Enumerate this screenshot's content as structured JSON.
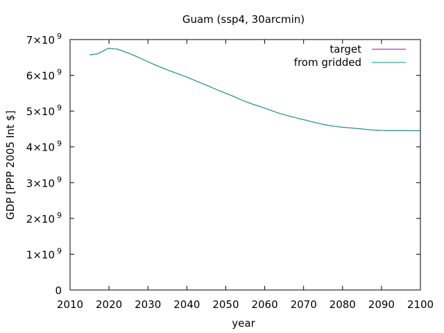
{
  "chart_data": {
    "type": "line",
    "title": "Guam (ssp4, 30arcmin)",
    "xlabel": "year",
    "ylabel": "GDP [PPP 2005 Int $]",
    "xlim": [
      2010,
      2100
    ],
    "ylim": [
      0,
      7000000000
    ],
    "xticks": [
      2010,
      2020,
      2030,
      2040,
      2050,
      2060,
      2070,
      2080,
      2090,
      2100
    ],
    "yticks": [
      {
        "value": 0,
        "mantissa": "0",
        "times": "",
        "base": "",
        "exp": ""
      },
      {
        "value": 1000000000,
        "mantissa": "1",
        "times": "×",
        "base": "10",
        "exp": "9"
      },
      {
        "value": 2000000000,
        "mantissa": "2",
        "times": "×",
        "base": "10",
        "exp": "9"
      },
      {
        "value": 3000000000,
        "mantissa": "3",
        "times": "×",
        "base": "10",
        "exp": "9"
      },
      {
        "value": 4000000000,
        "mantissa": "4",
        "times": "×",
        "base": "10",
        "exp": "9"
      },
      {
        "value": 5000000000,
        "mantissa": "5",
        "times": "×",
        "base": "10",
        "exp": "9"
      },
      {
        "value": 6000000000,
        "mantissa": "6",
        "times": "×",
        "base": "10",
        "exp": "9"
      },
      {
        "value": 7000000000,
        "mantissa": "7",
        "times": "×",
        "base": "10",
        "exp": "9"
      }
    ],
    "grid": false,
    "legend_position": "top-right",
    "x": [
      2015,
      2016,
      2017,
      2018,
      2019,
      2020,
      2021,
      2022,
      2023,
      2024,
      2025,
      2026,
      2027,
      2028,
      2029,
      2030,
      2031,
      2032,
      2033,
      2034,
      2035,
      2036,
      2037,
      2038,
      2039,
      2040,
      2041,
      2042,
      2043,
      2044,
      2045,
      2046,
      2047,
      2048,
      2049,
      2050,
      2051,
      2052,
      2053,
      2054,
      2055,
      2056,
      2057,
      2058,
      2059,
      2060,
      2061,
      2062,
      2063,
      2064,
      2065,
      2066,
      2067,
      2068,
      2069,
      2070,
      2071,
      2072,
      2073,
      2074,
      2075,
      2076,
      2077,
      2078,
      2079,
      2080,
      2081,
      2082,
      2083,
      2084,
      2085,
      2086,
      2087,
      2088,
      2089,
      2090,
      2091,
      2092,
      2093,
      2094,
      2095,
      2096,
      2097,
      2098,
      2099,
      2100
    ],
    "series": [
      {
        "name": "target",
        "color": "#9400d3",
        "values": [
          6570000000,
          6585000000,
          6600000000,
          6650000000,
          6710000000,
          6760000000,
          6740000000,
          6735000000,
          6700000000,
          6660000000,
          6620000000,
          6575000000,
          6530000000,
          6480000000,
          6430000000,
          6380000000,
          6330000000,
          6285000000,
          6240000000,
          6195000000,
          6150000000,
          6110000000,
          6070000000,
          6030000000,
          5990000000,
          5950000000,
          5905000000,
          5860000000,
          5815000000,
          5770000000,
          5725000000,
          5680000000,
          5630000000,
          5585000000,
          5540000000,
          5500000000,
          5455000000,
          5410000000,
          5360000000,
          5315000000,
          5270000000,
          5230000000,
          5190000000,
          5155000000,
          5120000000,
          5085000000,
          5045000000,
          5005000000,
          4965000000,
          4930000000,
          4900000000,
          4870000000,
          4840000000,
          4815000000,
          4785000000,
          4760000000,
          4735000000,
          4705000000,
          4680000000,
          4655000000,
          4630000000,
          4610000000,
          4590000000,
          4575000000,
          4560000000,
          4550000000,
          4540000000,
          4530000000,
          4520000000,
          4510000000,
          4500000000,
          4490000000,
          4480000000,
          4470000000,
          4465000000,
          4460000000,
          4458000000,
          4456000000,
          4455000000,
          4454000000,
          4454000000,
          4453000000,
          4453000000,
          4452000000,
          4452000000,
          4452000000
        ]
      },
      {
        "name": "from gridded",
        "color": "#009e73",
        "values": [
          6570000000,
          6585000000,
          6600000000,
          6650000000,
          6710000000,
          6760000000,
          6740000000,
          6735000000,
          6700000000,
          6660000000,
          6620000000,
          6575000000,
          6530000000,
          6480000000,
          6430000000,
          6380000000,
          6330000000,
          6285000000,
          6240000000,
          6195000000,
          6150000000,
          6110000000,
          6070000000,
          6030000000,
          5990000000,
          5950000000,
          5905000000,
          5860000000,
          5815000000,
          5770000000,
          5725000000,
          5680000000,
          5630000000,
          5585000000,
          5540000000,
          5500000000,
          5455000000,
          5410000000,
          5360000000,
          5315000000,
          5270000000,
          5230000000,
          5190000000,
          5155000000,
          5120000000,
          5085000000,
          5045000000,
          5005000000,
          4965000000,
          4930000000,
          4900000000,
          4870000000,
          4840000000,
          4815000000,
          4785000000,
          4760000000,
          4735000000,
          4705000000,
          4680000000,
          4655000000,
          4630000000,
          4610000000,
          4590000000,
          4575000000,
          4560000000,
          4550000000,
          4540000000,
          4530000000,
          4520000000,
          4510000000,
          4500000000,
          4490000000,
          4480000000,
          4470000000,
          4465000000,
          4460000000,
          4458000000,
          4456000000,
          4455000000,
          4454000000,
          4454000000,
          4453000000,
          4453000000,
          4452000000,
          4452000000,
          4452000000
        ]
      }
    ]
  }
}
